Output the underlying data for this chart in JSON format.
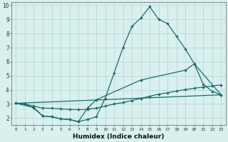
{
  "xlabel": "Humidex (Indice chaleur)",
  "background_color": "#d8f0ee",
  "grid_color": "#b8d8d5",
  "line_color": "#1a6b6b",
  "xlim": [
    -0.5,
    23.5
  ],
  "ylim": [
    1.5,
    10.2
  ],
  "xticks": [
    0,
    1,
    2,
    3,
    4,
    5,
    6,
    7,
    8,
    9,
    10,
    11,
    12,
    13,
    14,
    15,
    16,
    17,
    18,
    19,
    20,
    21,
    22,
    23
  ],
  "yticks": [
    2,
    3,
    4,
    5,
    6,
    7,
    8,
    9,
    10
  ],
  "series1_x": [
    0,
    1,
    2,
    3,
    4,
    5,
    6,
    7,
    8,
    9,
    10,
    11,
    12,
    13,
    14,
    15,
    16,
    17,
    18,
    19,
    20,
    21,
    22,
    23
  ],
  "series1_y": [
    3.05,
    3.0,
    2.7,
    2.15,
    2.1,
    1.95,
    1.9,
    1.75,
    1.9,
    2.1,
    3.4,
    5.2,
    7.0,
    8.5,
    9.1,
    9.9,
    9.0,
    8.7,
    7.8,
    6.9,
    5.85,
    4.4,
    3.9,
    3.65
  ],
  "series2_x": [
    0,
    1,
    2,
    3,
    4,
    5,
    6,
    7,
    8,
    9,
    10,
    11,
    12,
    13,
    14,
    15,
    16,
    17,
    18,
    19,
    20,
    21,
    22,
    23
  ],
  "series2_y": [
    3.05,
    3.0,
    2.85,
    2.7,
    2.7,
    2.65,
    2.62,
    2.6,
    2.62,
    2.7,
    2.85,
    3.0,
    3.1,
    3.25,
    3.4,
    3.55,
    3.7,
    3.8,
    3.92,
    4.02,
    4.12,
    4.2,
    4.28,
    4.35
  ],
  "series3_x": [
    0,
    2,
    3,
    4,
    5,
    6,
    7,
    8,
    9,
    14,
    19,
    20,
    23
  ],
  "series3_y": [
    3.05,
    2.75,
    2.15,
    2.1,
    1.95,
    1.9,
    1.75,
    2.7,
    3.3,
    4.7,
    5.4,
    5.85,
    3.65
  ],
  "series4_x": [
    0,
    23
  ],
  "series4_y": [
    3.05,
    3.65
  ]
}
